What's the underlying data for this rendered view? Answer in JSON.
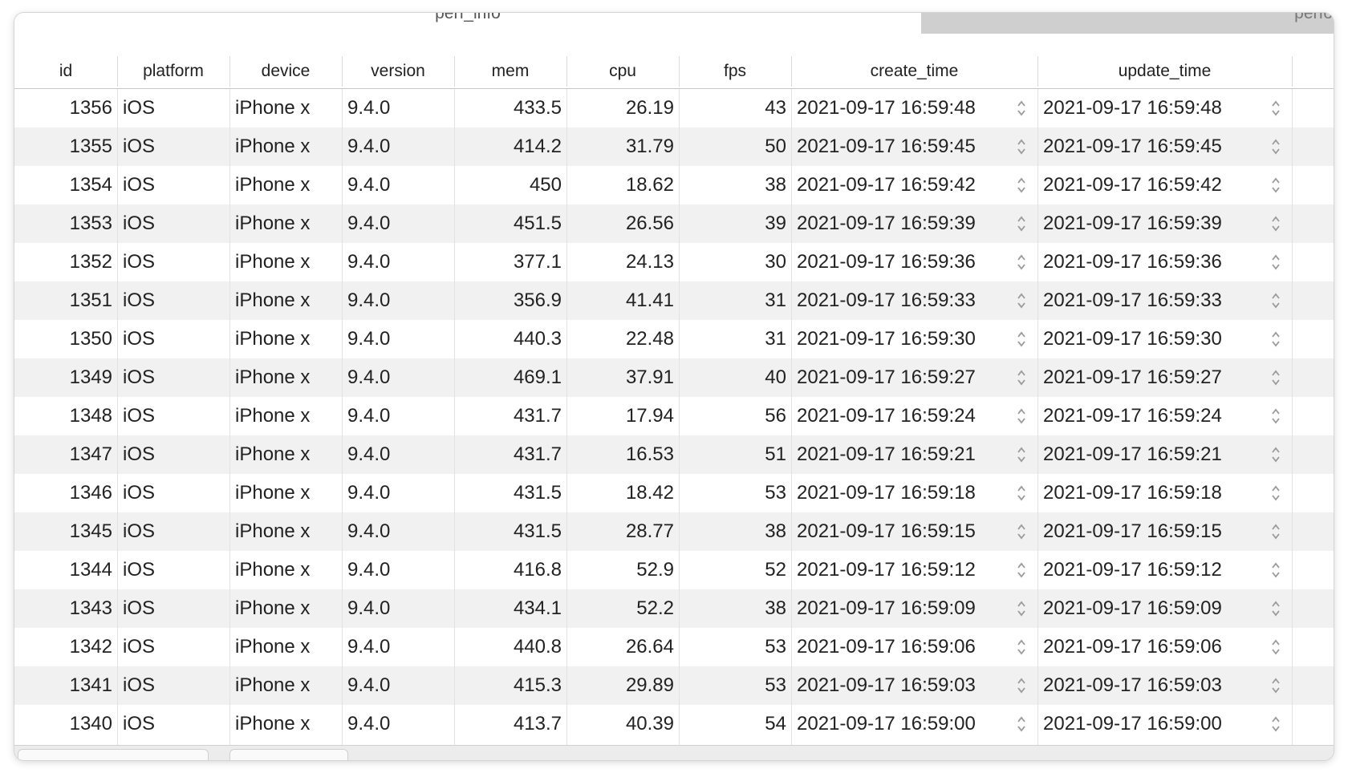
{
  "tabs": [
    {
      "label": "perf_info",
      "active": true
    },
    {
      "label": "perfor",
      "active": false
    }
  ],
  "columns": [
    "id",
    "platform",
    "device",
    "version",
    "mem",
    "cpu",
    "fps",
    "create_time",
    "update_time"
  ],
  "rows": [
    [
      "1356",
      "iOS",
      "iPhone x",
      "9.4.0",
      "433.5",
      "26.19",
      "43",
      "2021-09-17 16:59:48",
      "2021-09-17 16:59:48"
    ],
    [
      "1355",
      "iOS",
      "iPhone x",
      "9.4.0",
      "414.2",
      "31.79",
      "50",
      "2021-09-17 16:59:45",
      "2021-09-17 16:59:45"
    ],
    [
      "1354",
      "iOS",
      "iPhone x",
      "9.4.0",
      "450",
      "18.62",
      "38",
      "2021-09-17 16:59:42",
      "2021-09-17 16:59:42"
    ],
    [
      "1353",
      "iOS",
      "iPhone x",
      "9.4.0",
      "451.5",
      "26.56",
      "39",
      "2021-09-17 16:59:39",
      "2021-09-17 16:59:39"
    ],
    [
      "1352",
      "iOS",
      "iPhone x",
      "9.4.0",
      "377.1",
      "24.13",
      "30",
      "2021-09-17 16:59:36",
      "2021-09-17 16:59:36"
    ],
    [
      "1351",
      "iOS",
      "iPhone x",
      "9.4.0",
      "356.9",
      "41.41",
      "31",
      "2021-09-17 16:59:33",
      "2021-09-17 16:59:33"
    ],
    [
      "1350",
      "iOS",
      "iPhone x",
      "9.4.0",
      "440.3",
      "22.48",
      "31",
      "2021-09-17 16:59:30",
      "2021-09-17 16:59:30"
    ],
    [
      "1349",
      "iOS",
      "iPhone x",
      "9.4.0",
      "469.1",
      "37.91",
      "40",
      "2021-09-17 16:59:27",
      "2021-09-17 16:59:27"
    ],
    [
      "1348",
      "iOS",
      "iPhone x",
      "9.4.0",
      "431.7",
      "17.94",
      "56",
      "2021-09-17 16:59:24",
      "2021-09-17 16:59:24"
    ],
    [
      "1347",
      "iOS",
      "iPhone x",
      "9.4.0",
      "431.7",
      "16.53",
      "51",
      "2021-09-17 16:59:21",
      "2021-09-17 16:59:21"
    ],
    [
      "1346",
      "iOS",
      "iPhone x",
      "9.4.0",
      "431.5",
      "18.42",
      "53",
      "2021-09-17 16:59:18",
      "2021-09-17 16:59:18"
    ],
    [
      "1345",
      "iOS",
      "iPhone x",
      "9.4.0",
      "431.5",
      "28.77",
      "38",
      "2021-09-17 16:59:15",
      "2021-09-17 16:59:15"
    ],
    [
      "1344",
      "iOS",
      "iPhone x",
      "9.4.0",
      "416.8",
      "52.9",
      "52",
      "2021-09-17 16:59:12",
      "2021-09-17 16:59:12"
    ],
    [
      "1343",
      "iOS",
      "iPhone x",
      "9.4.0",
      "434.1",
      "52.2",
      "38",
      "2021-09-17 16:59:09",
      "2021-09-17 16:59:09"
    ],
    [
      "1342",
      "iOS",
      "iPhone x",
      "9.4.0",
      "440.8",
      "26.64",
      "53",
      "2021-09-17 16:59:06",
      "2021-09-17 16:59:06"
    ],
    [
      "1341",
      "iOS",
      "iPhone x",
      "9.4.0",
      "415.3",
      "29.89",
      "53",
      "2021-09-17 16:59:03",
      "2021-09-17 16:59:03"
    ],
    [
      "1340",
      "iOS",
      "iPhone x",
      "9.4.0",
      "413.7",
      "40.39",
      "54",
      "2021-09-17 16:59:00",
      "2021-09-17 16:59:00"
    ]
  ],
  "icons": {
    "stepper": "up-down-stepper-icon"
  },
  "colors": {
    "row_alt": "#f1f1f1",
    "tab_inactive": "#cfcfcf"
  }
}
